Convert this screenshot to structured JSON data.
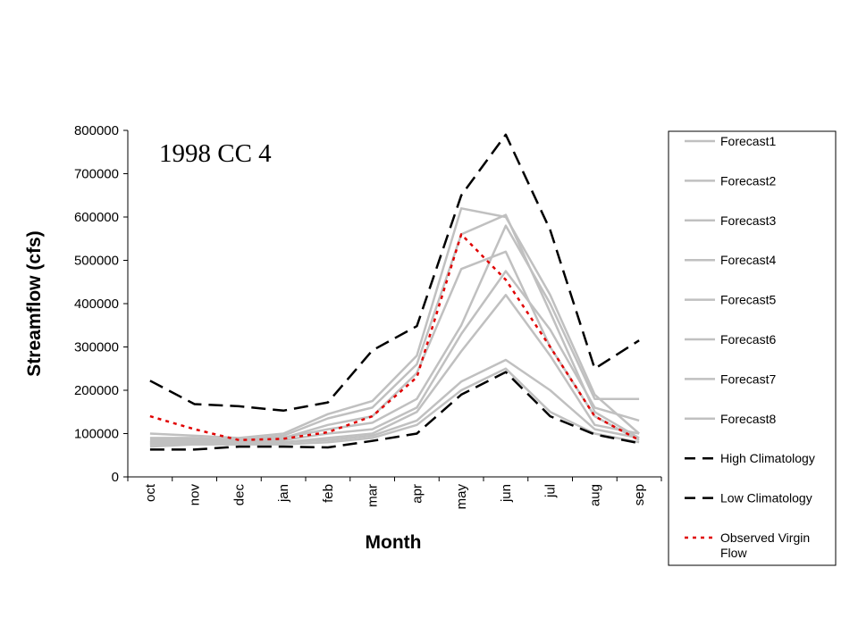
{
  "chart_data": {
    "type": "line",
    "title": "",
    "annotation": "1998 CC 4",
    "xlabel": "Month",
    "ylabel": "Streamflow (cfs)",
    "categories": [
      "oct",
      "nov",
      "dec",
      "jan",
      "feb",
      "mar",
      "apr",
      "may",
      "jun",
      "jul",
      "aug",
      "sep"
    ],
    "ylim": [
      0,
      800000
    ],
    "yticks": [
      0,
      100000,
      200000,
      300000,
      400000,
      500000,
      600000,
      700000,
      800000
    ],
    "ytick_labels": [
      "0",
      "100000",
      "200000",
      "300000",
      "400000",
      "500000",
      "600000",
      "700000",
      "800000"
    ],
    "grid": false,
    "legend_position": "right",
    "series": [
      {
        "name": "Forecast1",
        "style": "solid",
        "color": "#c0c0c0",
        "values": [
          100000,
          95000,
          90000,
          100000,
          145000,
          175000,
          280000,
          620000,
          600000,
          420000,
          190000,
          100000
        ]
      },
      {
        "name": "Forecast2",
        "style": "solid",
        "color": "#c0c0c0",
        "values": [
          90000,
          90000,
          85000,
          95000,
          135000,
          160000,
          260000,
          560000,
          605000,
          380000,
          150000,
          90000
        ]
      },
      {
        "name": "Forecast3",
        "style": "solid",
        "color": "#c0c0c0",
        "values": [
          85000,
          85000,
          85000,
          90000,
          120000,
          140000,
          240000,
          480000,
          520000,
          300000,
          140000,
          85000
        ]
      },
      {
        "name": "Forecast4",
        "style": "solid",
        "color": "#c0c0c0",
        "values": [
          80000,
          85000,
          85000,
          90000,
          110000,
          125000,
          180000,
          350000,
          580000,
          400000,
          180000,
          180000
        ]
      },
      {
        "name": "Forecast5",
        "style": "solid",
        "color": "#c0c0c0",
        "values": [
          80000,
          80000,
          80000,
          85000,
          100000,
          110000,
          160000,
          330000,
          475000,
          340000,
          160000,
          130000
        ]
      },
      {
        "name": "Forecast6",
        "style": "solid",
        "color": "#c0c0c0",
        "values": [
          75000,
          80000,
          80000,
          80000,
          90000,
          100000,
          150000,
          290000,
          420000,
          280000,
          120000,
          100000
        ]
      },
      {
        "name": "Forecast7",
        "style": "solid",
        "color": "#c0c0c0",
        "values": [
          75000,
          75000,
          75000,
          80000,
          85000,
          95000,
          130000,
          220000,
          270000,
          200000,
          110000,
          90000
        ]
      },
      {
        "name": "Forecast8",
        "style": "solid",
        "color": "#c0c0c0",
        "values": [
          70000,
          75000,
          75000,
          75000,
          80000,
          90000,
          120000,
          200000,
          250000,
          150000,
          100000,
          80000
        ]
      },
      {
        "name": "High Climatology",
        "style": "longdash",
        "color": "#000000",
        "values": [
          222000,
          168000,
          163000,
          153000,
          172000,
          292000,
          348000,
          650000,
          790000,
          570000,
          250000,
          315000
        ]
      },
      {
        "name": "Low Climatology",
        "style": "longdash",
        "color": "#000000",
        "values": [
          63000,
          63000,
          70000,
          70000,
          68000,
          83000,
          100000,
          190000,
          242000,
          140000,
          98000,
          78000
        ]
      },
      {
        "name": "Observed Virgin Flow",
        "style": "dotted",
        "color": "#e00000",
        "values": [
          140000,
          110000,
          85000,
          88000,
          103000,
          140000,
          230000,
          560000,
          455000,
          300000,
          140000,
          85000
        ]
      }
    ]
  }
}
